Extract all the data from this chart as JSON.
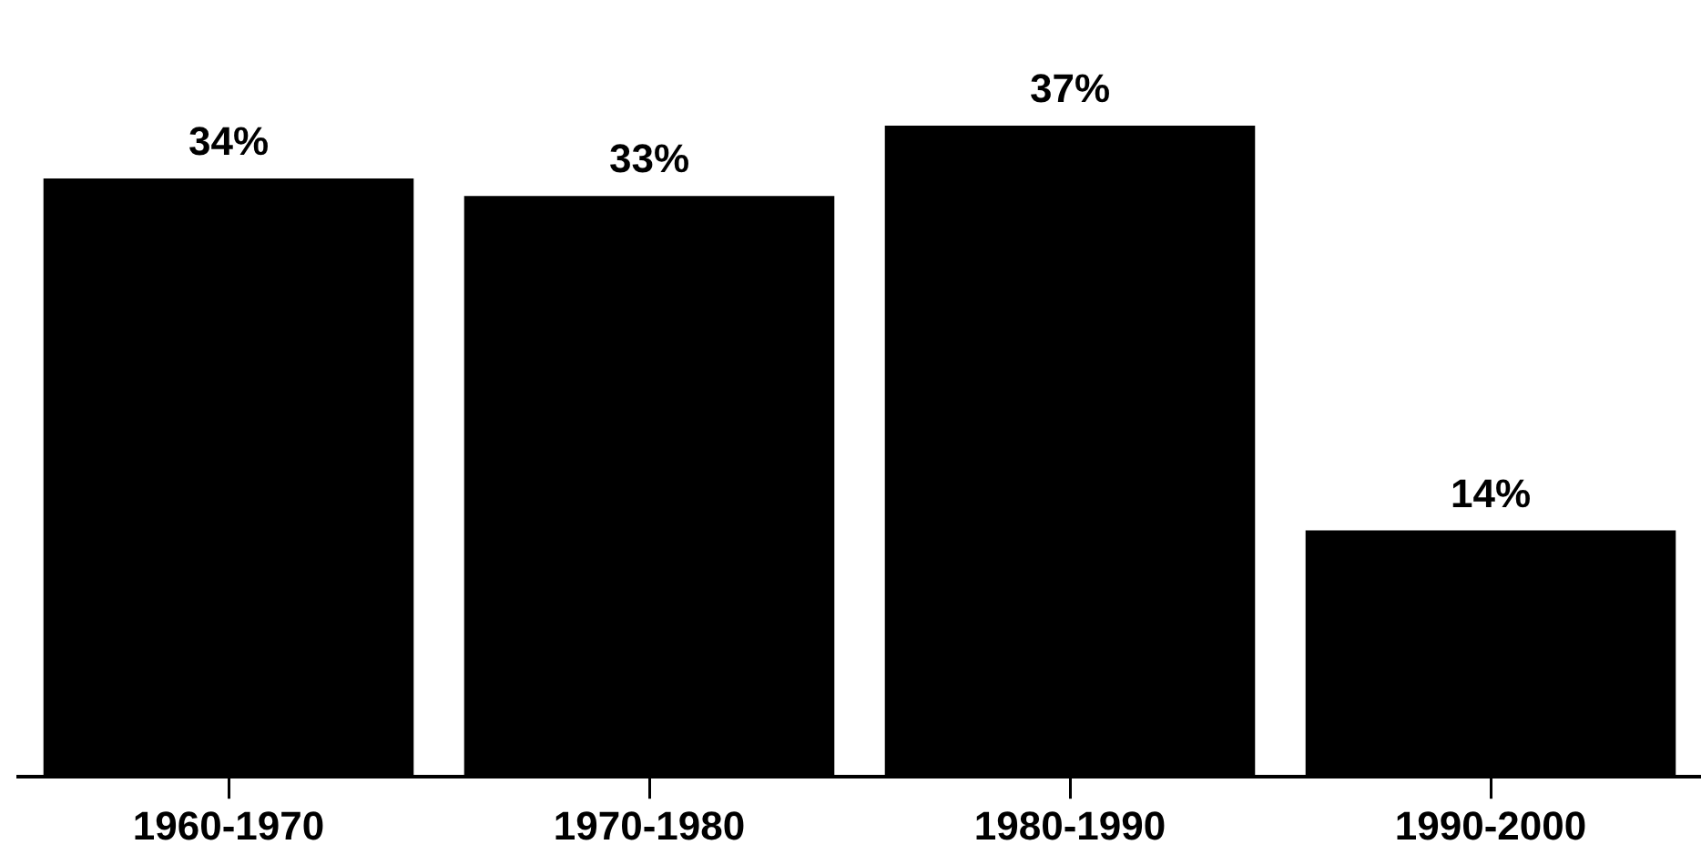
{
  "chart_data": {
    "type": "bar",
    "categories": [
      "1960-1970",
      "1970-1980",
      "1980-1990",
      "1990-2000"
    ],
    "values": [
      34,
      33,
      37,
      14
    ],
    "color": "#000000",
    "value_labels": [
      "34%",
      "33%",
      "37%",
      "14%"
    ],
    "grid": false,
    "legend": false
  }
}
